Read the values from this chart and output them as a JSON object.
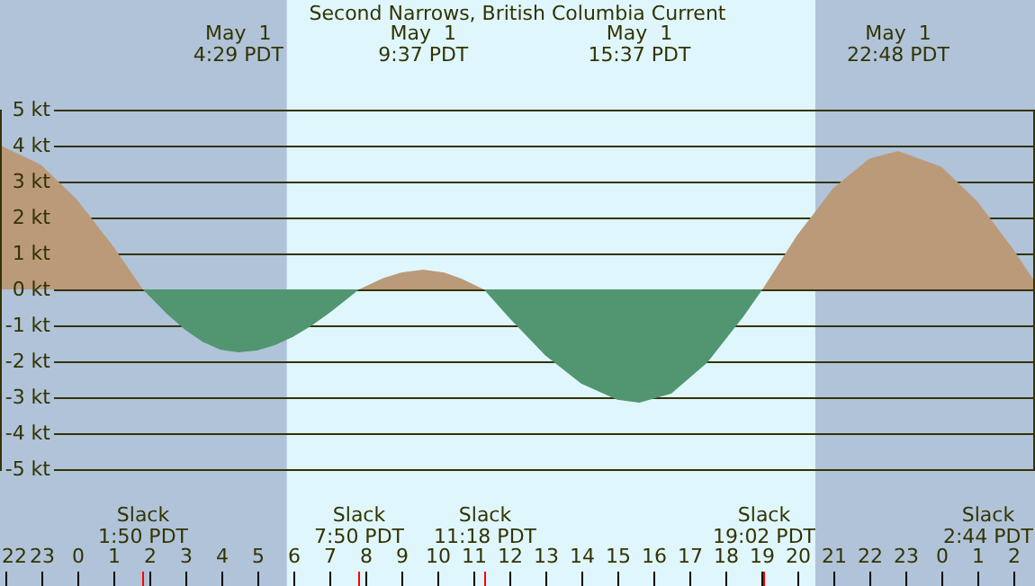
{
  "chart_data": {
    "type": "area",
    "title": "Second Narrows, British Columbia Current",
    "x": [
      "--04-30T21:52",
      "--04-30T23:00",
      "--05-01T00:00",
      "--05-01T01:00",
      "--05-01T01:50",
      "--05-01T02:30",
      "--05-01T03:00",
      "--05-01T03:30",
      "--05-01T04:00",
      "--05-01T04:29",
      "--05-01T05:00",
      "--05-01T05:30",
      "--05-01T06:00",
      "--05-01T06:30",
      "--05-01T07:00",
      "--05-01T07:30",
      "--05-01T07:50",
      "--05-01T08:30",
      "--05-01T09:00",
      "--05-01T09:37",
      "--05-01T10:12",
      "--05-01T10:42",
      "--05-01T11:18",
      "--05-01T12:00",
      "--05-01T13:00",
      "--05-01T14:00",
      "--05-01T15:00",
      "--05-01T15:37",
      "--05-01T16:30",
      "--05-01T17:30",
      "--05-01T18:30",
      "--05-01T19:02",
      "--05-01T20:00",
      "--05-01T21:00",
      "--05-01T22:00",
      "--05-01T22:48",
      "--05-02T00:00",
      "--05-02T01:00",
      "--05-02T02:00",
      "--05-02T02:36"
    ],
    "series": [
      {
        "color": "#bb9a7a",
        "values": [
          4.01,
          3.47,
          2.5,
          1.21,
          0,
          null,
          null,
          null,
          null,
          null,
          null,
          null,
          null,
          null,
          null,
          null,
          0,
          0.31,
          0.47,
          0.55,
          0.47,
          0.29,
          0,
          null,
          null,
          null,
          null,
          null,
          null,
          null,
          null,
          0,
          1.51,
          2.82,
          3.64,
          3.85,
          3.41,
          2.45,
          1.11,
          0.2
        ]
      },
      {
        "color": "#519670",
        "values": [
          null,
          null,
          null,
          null,
          0,
          -0.68,
          -1.12,
          -1.46,
          -1.68,
          -1.75,
          -1.7,
          -1.55,
          -1.32,
          -1.02,
          -0.66,
          -0.27,
          0,
          null,
          null,
          null,
          null,
          null,
          0,
          -0.79,
          -1.83,
          -2.62,
          -3.07,
          -3.15,
          -2.9,
          -2.04,
          -0.76,
          0,
          null,
          null,
          null,
          null,
          null,
          null,
          null,
          null
        ]
      }
    ],
    "xlim": [
      "--04-30T21:52",
      "--05-02T02:36"
    ],
    "xticks": [
      {
        "value": "--04-30T22:00",
        "label": "22"
      },
      {
        "value": "--04-30T23:00",
        "label": "23"
      },
      {
        "value": "--05-01T00:00",
        "label": "0"
      },
      {
        "value": "--05-01T01:00",
        "label": "1"
      },
      {
        "value": "--05-01T02:00",
        "label": "2"
      },
      {
        "value": "--05-01T03:00",
        "label": "3"
      },
      {
        "value": "--05-01T04:00",
        "label": "4"
      },
      {
        "value": "--05-01T05:00",
        "label": "5"
      },
      {
        "value": "--05-01T06:00",
        "label": "6"
      },
      {
        "value": "--05-01T07:00",
        "label": "7"
      },
      {
        "value": "--05-01T08:00",
        "label": "8"
      },
      {
        "value": "--05-01T09:00",
        "label": "9"
      },
      {
        "value": "--05-01T10:00",
        "label": "10"
      },
      {
        "value": "--05-01T11:00",
        "label": "11"
      },
      {
        "value": "--05-01T12:00",
        "label": "12"
      },
      {
        "value": "--05-01T13:00",
        "label": "13"
      },
      {
        "value": "--05-01T14:00",
        "label": "14"
      },
      {
        "value": "--05-01T15:00",
        "label": "15"
      },
      {
        "value": "--05-01T16:00",
        "label": "16"
      },
      {
        "value": "--05-01T17:00",
        "label": "17"
      },
      {
        "value": "--05-01T18:00",
        "label": "18"
      },
      {
        "value": "--05-01T19:00",
        "label": "19"
      },
      {
        "value": "--05-01T20:00",
        "label": "20"
      },
      {
        "value": "--05-01T21:00",
        "label": "21"
      },
      {
        "value": "--05-01T22:00",
        "label": "22"
      },
      {
        "value": "--05-01T23:00",
        "label": "23"
      },
      {
        "value": "--05-02T00:00",
        "label": "0"
      },
      {
        "value": "--05-02T01:00",
        "label": "1"
      },
      {
        "value": "--05-02T02:00",
        "label": "2"
      }
    ],
    "ylim": [
      -5,
      5
    ],
    "yticks": [
      {
        "value": 5,
        "label": "5 kt"
      },
      {
        "value": 4,
        "label": "4 kt"
      },
      {
        "value": 3,
        "label": "3 kt"
      },
      {
        "value": 2,
        "label": "2 kt"
      },
      {
        "value": 1,
        "label": "1 kt"
      },
      {
        "value": 0,
        "label": "0 kt"
      },
      {
        "value": -1,
        "label": "-1 kt"
      },
      {
        "value": -2,
        "label": "-2 kt"
      },
      {
        "value": -3,
        "label": "-3 kt"
      },
      {
        "value": -4,
        "label": "-4 kt"
      },
      {
        "value": -5,
        "label": "-5 kt"
      }
    ],
    "grid": "y",
    "bands": [
      {
        "axis": "x",
        "from": "--04-30T21:52",
        "to": "--05-01T05:50",
        "color": "#b0c3d9"
      },
      {
        "axis": "x",
        "from": "--05-01T05:50",
        "to": "--05-01T20:30",
        "color": "#dff6fd"
      },
      {
        "axis": "x",
        "from": "--05-01T20:30",
        "to": "--05-02T02:36",
        "color": "#b0c3d9"
      }
    ],
    "ref_lines": [
      {
        "axis": "x",
        "value": "--05-01T01:50",
        "label": "Slack\n1:50 PDT",
        "color": "#ff0000"
      },
      {
        "axis": "x",
        "value": "--05-01T07:50",
        "label": "Slack\n7:50 PDT",
        "color": "#ff0000"
      },
      {
        "axis": "x",
        "value": "--05-01T11:18",
        "label": "Slack\n11:18 PDT",
        "color": "#ff0000"
      },
      {
        "axis": "x",
        "value": "--05-01T19:02",
        "label": "Slack\n19:02 PDT",
        "color": "#ff0000"
      }
    ],
    "annotations": [
      "May  1\n4:29 PDT",
      "May  1\n9:37 PDT",
      "May  1\n15:37 PDT",
      "May  1\n22:48 PDT",
      "Slack\n2:44 PDT"
    ]
  }
}
